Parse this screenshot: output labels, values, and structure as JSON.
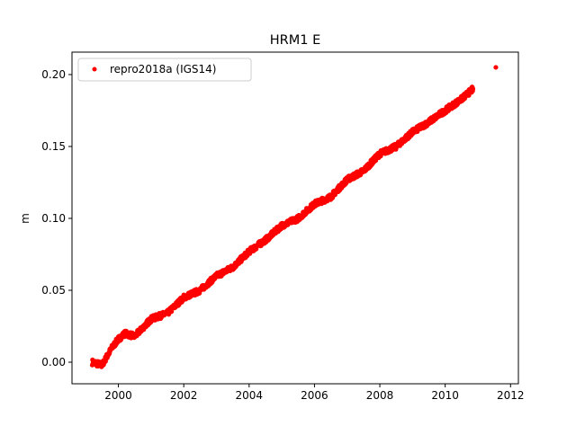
{
  "chart_data": {
    "type": "scatter",
    "title": "HRM1 E",
    "xlabel": "",
    "ylabel": "m",
    "xlim": [
      1998.58,
      2012.24
    ],
    "ylim": [
      -0.015,
      0.2156
    ],
    "xticks": [
      2000,
      2002,
      2004,
      2006,
      2008,
      2010,
      2012
    ],
    "xtick_labels": [
      "2000",
      "2002",
      "2004",
      "2006",
      "2008",
      "2010",
      "2012"
    ],
    "yticks": [
      0.0,
      0.05,
      0.1,
      0.15,
      0.2
    ],
    "ytick_labels": [
      "0.00",
      "0.05",
      "0.10",
      "0.15",
      "0.20"
    ],
    "grid": false,
    "legend_position": "top-left",
    "series": [
      {
        "name": "repro2018a (IGS14)",
        "color": "#ff0000",
        "marker": "circle",
        "x": [
          1999.2,
          1999.5,
          1999.8,
          2000.0,
          2000.2,
          2000.5,
          2001.0,
          2001.5,
          2002.0,
          2002.5,
          2003.0,
          2003.5,
          2004.0,
          2004.5,
          2005.0,
          2005.5,
          2006.0,
          2006.5,
          2007.0,
          2007.5,
          2008.0,
          2008.5,
          2009.0,
          2009.5,
          2010.0,
          2010.5,
          2010.85,
          2011.55
        ],
        "y": [
          0.0,
          -0.002,
          0.01,
          0.016,
          0.02,
          0.018,
          0.03,
          0.034,
          0.045,
          0.05,
          0.06,
          0.066,
          0.077,
          0.085,
          0.095,
          0.1,
          0.11,
          0.115,
          0.127,
          0.133,
          0.145,
          0.15,
          0.16,
          0.167,
          0.175,
          0.183,
          0.19,
          0.205
        ]
      }
    ]
  }
}
